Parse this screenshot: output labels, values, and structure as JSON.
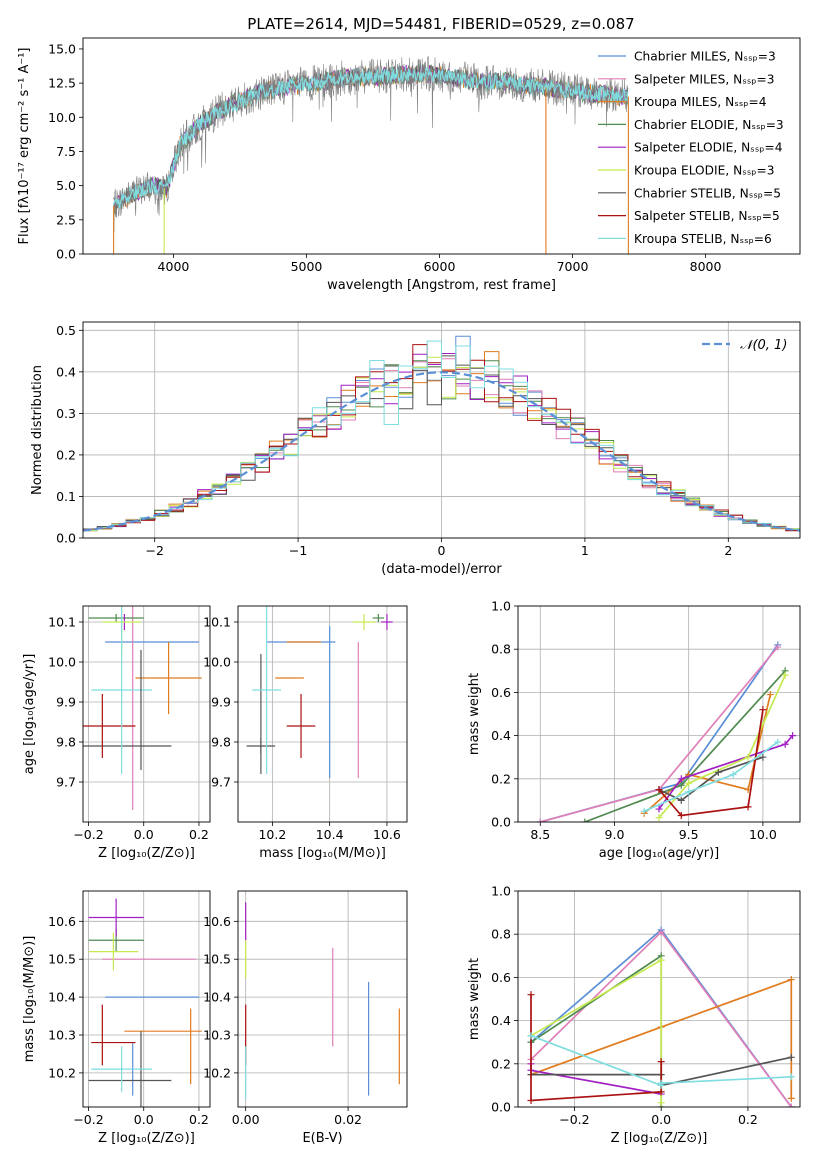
{
  "figure": {
    "title": "PLATE=2614, MJD=54481, FIBERID=0529, z=0.087"
  },
  "colors": {
    "chab_miles": "#5a8fd8",
    "salp_miles": "#e07fb8",
    "krou_miles": "#e07b1e",
    "chab_elodie": "#4f8a4f",
    "salp_elodie": "#a11fc3",
    "krou_elodie": "#c6e94f",
    "chab_stelib": "#555555",
    "salp_stelib": "#aa1111",
    "krou_stelib": "#7fdde0",
    "spectrum_data": "#7f7f7f",
    "gaussian": "#5b8fd6"
  },
  "chart_data": [
    {
      "id": "spectrum",
      "type": "line",
      "title": "PLATE=2614, MJD=54481, FIBERID=0529, z=0.087",
      "xlabel": "wavelength [Angstrom, rest frame]",
      "ylabel": "Flux [fλ10⁻¹⁷ erg cm⁻² s⁻¹ A⁻¹]",
      "xlim": [
        3320,
        8710
      ],
      "ylim": [
        0,
        15.8
      ],
      "xticks": [
        4000,
        5000,
        6000,
        7000,
        8000
      ],
      "yticks": [
        0.0,
        2.5,
        5.0,
        7.5,
        10.0,
        12.5,
        15.0
      ],
      "grid": false,
      "legend_position": "top-right",
      "legend": [
        {
          "label": "Chabrier MILES, Nₛₛₚ=3",
          "color_key": "chab_miles"
        },
        {
          "label": "Salpeter MILES, Nₛₛₚ=3",
          "color_key": "salp_miles"
        },
        {
          "label": "Kroupa MILES, Nₛₛₚ=4",
          "color_key": "krou_miles"
        },
        {
          "label": "Chabrier ELODIE, Nₛₛₚ=3",
          "color_key": "chab_elodie"
        },
        {
          "label": "Salpeter ELODIE, Nₛₛₚ=4",
          "color_key": "salp_elodie"
        },
        {
          "label": "Kroupa ELODIE, Nₛₛₚ=3",
          "color_key": "krou_elodie"
        },
        {
          "label": "Chabrier STELIB, Nₛₛₚ=5",
          "color_key": "chab_stelib"
        },
        {
          "label": "Salpeter STELIB, Nₛₛₚ=5",
          "color_key": "salp_stelib"
        },
        {
          "label": "Kroupa STELIB, Nₛₛₚ=6",
          "color_key": "krou_stelib"
        }
      ],
      "continuum_x": [
        3550,
        3700,
        3850,
        3950,
        4050,
        4200,
        4350,
        4500,
        4700,
        4900,
        5100,
        5300,
        5500,
        5700,
        5900,
        6100,
        6300,
        6500,
        6700,
        6900,
        7100,
        7300,
        7420
      ],
      "continuum_y": [
        3.5,
        4.5,
        5.0,
        4.8,
        8.0,
        9.5,
        10.5,
        11.2,
        12.0,
        12.3,
        12.6,
        12.9,
        13.0,
        13.1,
        13.2,
        12.9,
        12.6,
        12.6,
        12.3,
        12.1,
        11.8,
        11.6,
        11.5
      ],
      "spikes": [
        {
          "x": 3550,
          "color_key": "krou_miles"
        },
        {
          "x": 3930,
          "color_key": "krou_elodie"
        },
        {
          "x": 6800,
          "color_key": "krou_miles"
        },
        {
          "x": 7420,
          "color_key": "krou_miles"
        }
      ]
    },
    {
      "id": "residuals",
      "type": "line",
      "xlabel": "(data-model)/error",
      "ylabel": "Normed distribution",
      "xlim": [
        -2.5,
        2.5
      ],
      "ylim": [
        0,
        0.52
      ],
      "xticks": [
        -2,
        -1,
        0,
        1,
        2
      ],
      "yticks": [
        0.0,
        0.1,
        0.2,
        0.3,
        0.4,
        0.5
      ],
      "grid": true,
      "legend_position": "top-right",
      "legend": [
        {
          "label": "𝒩(0, 1)",
          "color_key": "gaussian"
        }
      ],
      "bin_width": 0.1,
      "series_note": "step histograms, one per model, plus dashed standard normal curve"
    },
    {
      "id": "age_vs_z",
      "type": "scatter",
      "xlabel": "Z [log₁₀(Z/Z⊙)]",
      "ylabel": "age  [log₁₀(age/yr)]",
      "xlim": [
        -0.22,
        0.24
      ],
      "ylim": [
        9.6,
        10.14
      ],
      "xticks": [
        -0.2,
        0.0,
        0.2
      ],
      "yticks": [
        9.7,
        9.8,
        9.9,
        10.0,
        10.1
      ],
      "grid": true,
      "points": [
        {
          "model": "chab_miles",
          "x": 0.03,
          "y": 10.05,
          "xerr": 0.17,
          "yerr": 0.0
        },
        {
          "model": "salp_miles",
          "x": -0.04,
          "y": 9.9,
          "xerr": 0.0,
          "yerr": 0.27
        },
        {
          "model": "krou_miles",
          "x": 0.09,
          "y": 9.96,
          "xerr": 0.12,
          "yerr": 0.09
        },
        {
          "model": "chab_elodie",
          "x": -0.1,
          "y": 10.11,
          "xerr": 0.1,
          "yerr": 0.01
        },
        {
          "model": "salp_elodie",
          "x": -0.07,
          "y": 10.1,
          "xerr": 0.0,
          "yerr": 0.02
        },
        {
          "model": "krou_elodie",
          "x": -0.08,
          "y": 10.1,
          "xerr": 0.07,
          "yerr": 0.08
        },
        {
          "model": "chab_stelib",
          "x": -0.07,
          "y": 9.79,
          "xerr": 0.17,
          "yerr": 0.0
        },
        {
          "model": "salp_stelib",
          "x": -0.15,
          "y": 9.84,
          "xerr": 0.12,
          "yerr": 0.08
        },
        {
          "model": "krou_stelib",
          "x": -0.08,
          "y": 9.93,
          "xerr": 0.11,
          "yerr": 0.21
        },
        {
          "model": "chab_stelib",
          "x": -0.01,
          "y": 9.88,
          "xerr": 0.0,
          "yerr": 0.15
        }
      ]
    },
    {
      "id": "age_vs_mass",
      "type": "scatter",
      "xlabel": "mass [log₁₀(M/M⊙)]",
      "xlim": [
        10.08,
        10.67
      ],
      "ylim": [
        9.6,
        10.14
      ],
      "xticks": [
        10.2,
        10.4,
        10.6
      ],
      "yticks": [
        9.7,
        9.8,
        9.9,
        10.0,
        10.1
      ],
      "grid": true,
      "points": [
        {
          "model": "chab_miles",
          "x": 10.3,
          "y": 10.05,
          "xerr": 0.12,
          "yerr": 0.0
        },
        {
          "model": "chab_miles",
          "x": 10.4,
          "y": 9.9,
          "xerr": 0.0,
          "yerr": 0.19
        },
        {
          "model": "salp_miles",
          "x": 10.5,
          "y": 9.88,
          "xerr": 0.0,
          "yerr": 0.17
        },
        {
          "model": "krou_miles",
          "x": 10.31,
          "y": 10.05,
          "xerr": 0.06,
          "yerr": 0.0
        },
        {
          "model": "krou_miles",
          "x": 10.26,
          "y": 9.96,
          "xerr": 0.05,
          "yerr": 0.0
        },
        {
          "model": "chab_elodie",
          "x": 10.57,
          "y": 10.11,
          "xerr": 0.02,
          "yerr": 0.01
        },
        {
          "model": "salp_elodie",
          "x": 10.6,
          "y": 10.1,
          "xerr": 0.02,
          "yerr": 0.02
        },
        {
          "model": "krou_elodie",
          "x": 10.52,
          "y": 10.1,
          "xerr": 0.04,
          "yerr": 0.02
        },
        {
          "model": "chab_stelib",
          "x": 10.16,
          "y": 9.79,
          "xerr": 0.05,
          "yerr": 0.02
        },
        {
          "model": "chab_stelib",
          "x": 10.16,
          "y": 9.87,
          "xerr": 0.0,
          "yerr": 0.15
        },
        {
          "model": "salp_stelib",
          "x": 10.3,
          "y": 9.84,
          "xerr": 0.05,
          "yerr": 0.08
        },
        {
          "model": "krou_stelib",
          "x": 10.18,
          "y": 9.93,
          "xerr": 0.05,
          "yerr": 0.21
        }
      ]
    },
    {
      "id": "mass_weight_vs_age",
      "type": "line",
      "xlabel": "age  [log₁₀(age/yr)]",
      "ylabel": "mass weight",
      "xlim": [
        8.35,
        10.25
      ],
      "ylim": [
        0,
        1.0
      ],
      "xticks": [
        8.5,
        9.0,
        9.5,
        10.0
      ],
      "yticks": [
        0.0,
        0.2,
        0.4,
        0.6,
        0.8,
        1.0
      ],
      "grid": true,
      "series": [
        {
          "model": "chab_miles",
          "x": [
            8.5,
            9.45,
            10.1
          ],
          "y": [
            0.0,
            0.18,
            0.82
          ]
        },
        {
          "model": "salp_miles",
          "x": [
            8.5,
            9.3,
            10.1
          ],
          "y": [
            0.0,
            0.15,
            0.81
          ]
        },
        {
          "model": "krou_miles",
          "x": [
            9.2,
            9.5,
            9.9,
            10.05
          ],
          "y": [
            0.04,
            0.22,
            0.15,
            0.59
          ]
        },
        {
          "model": "chab_elodie",
          "x": [
            8.8,
            9.45,
            10.15
          ],
          "y": [
            0.0,
            0.17,
            0.7
          ]
        },
        {
          "model": "salp_elodie",
          "x": [
            9.3,
            9.45,
            10.15,
            10.2
          ],
          "y": [
            0.06,
            0.2,
            0.36,
            0.4
          ]
        },
        {
          "model": "krou_elodie",
          "x": [
            9.3,
            9.5,
            9.9,
            10.15
          ],
          "y": [
            0.02,
            0.18,
            0.3,
            0.68
          ]
        },
        {
          "model": "chab_stelib",
          "x": [
            9.3,
            9.45,
            9.7,
            10.0
          ],
          "y": [
            0.15,
            0.1,
            0.23,
            0.3
          ]
        },
        {
          "model": "salp_stelib",
          "x": [
            9.3,
            9.45,
            9.9,
            10.0
          ],
          "y": [
            0.15,
            0.03,
            0.07,
            0.52
          ]
        },
        {
          "model": "krou_stelib",
          "x": [
            9.2,
            9.5,
            9.8,
            10.1
          ],
          "y": [
            0.05,
            0.14,
            0.22,
            0.37
          ]
        }
      ]
    },
    {
      "id": "mass_vs_z",
      "type": "scatter",
      "xlabel": "Z [log₁₀(Z/Z⊙)]",
      "ylabel": "mass [log₁₀(M/M⊙)]",
      "xlim": [
        -0.22,
        0.24
      ],
      "ylim": [
        10.11,
        10.68
      ],
      "xticks": [
        -0.2,
        0.0,
        0.2
      ],
      "yticks": [
        10.2,
        10.3,
        10.4,
        10.5,
        10.6
      ],
      "grid": true,
      "points": [
        {
          "model": "chab_miles",
          "x": 0.03,
          "y": 10.4,
          "xerr": 0.17,
          "yerr": 0.0
        },
        {
          "model": "chab_miles",
          "x": -0.04,
          "y": 10.21,
          "xerr": 0.0,
          "yerr": 0.07
        },
        {
          "model": "salp_miles",
          "x": 0.02,
          "y": 10.5,
          "xerr": 0.17,
          "yerr": 0.0
        },
        {
          "model": "krou_miles",
          "x": 0.07,
          "y": 10.31,
          "xerr": 0.14,
          "yerr": 0.0
        },
        {
          "model": "krou_miles",
          "x": 0.17,
          "y": 10.27,
          "xerr": 0.0,
          "yerr": 0.1
        },
        {
          "model": "chab_elodie",
          "x": -0.1,
          "y": 10.55,
          "xerr": 0.1,
          "yerr": 0.03
        },
        {
          "model": "salp_elodie",
          "x": -0.1,
          "y": 10.61,
          "xerr": 0.1,
          "yerr": 0.05
        },
        {
          "model": "krou_elodie",
          "x": -0.11,
          "y": 10.52,
          "xerr": 0.09,
          "yerr": 0.05
        },
        {
          "model": "chab_stelib",
          "x": -0.05,
          "y": 10.18,
          "xerr": 0.15,
          "yerr": 0.0
        },
        {
          "model": "chab_stelib",
          "x": -0.01,
          "y": 10.21,
          "xerr": 0.0,
          "yerr": 0.1
        },
        {
          "model": "salp_stelib",
          "x": -0.11,
          "y": 10.28,
          "xerr": 0.08,
          "yerr": 0.0
        },
        {
          "model": "salp_stelib",
          "x": -0.15,
          "y": 10.3,
          "xerr": 0.0,
          "yerr": 0.08
        },
        {
          "model": "krou_stelib",
          "x": -0.08,
          "y": 10.21,
          "xerr": 0.11,
          "yerr": 0.06
        }
      ]
    },
    {
      "id": "mass_vs_ebv",
      "type": "scatter",
      "xlabel": "E(B-V)",
      "xlim": [
        -0.0015,
        0.0315
      ],
      "ylim": [
        10.11,
        10.68
      ],
      "xticks": [
        0.0,
        0.02
      ],
      "yticks": [
        10.2,
        10.3,
        10.4,
        10.5,
        10.6
      ],
      "grid": true,
      "points": [
        {
          "model": "salp_elodie",
          "x": 0.0,
          "y": 10.6,
          "xerr": 0.0,
          "yerr": 0.05
        },
        {
          "model": "krou_elodie",
          "x": 0.0,
          "y": 10.5,
          "xerr": 0.0,
          "yerr": 0.05
        },
        {
          "model": "salp_stelib",
          "x": 0.0,
          "y": 10.3,
          "xerr": 0.0,
          "yerr": 0.08
        },
        {
          "model": "krou_stelib",
          "x": 0.0,
          "y": 10.2,
          "xerr": 0.0,
          "yerr": 0.07
        },
        {
          "model": "salp_miles",
          "x": 0.017,
          "y": 10.4,
          "xerr": 0.0,
          "yerr": 0.13
        },
        {
          "model": "chab_miles",
          "x": 0.024,
          "y": 10.29,
          "xerr": 0.0,
          "yerr": 0.15
        },
        {
          "model": "krou_miles",
          "x": 0.03,
          "y": 10.27,
          "xerr": 0.0,
          "yerr": 0.1
        }
      ]
    },
    {
      "id": "mass_weight_vs_z",
      "type": "line",
      "xlabel": "Z [log₁₀(Z/Z⊙)]",
      "ylabel": "mass weight",
      "xlim": [
        -0.33,
        0.32
      ],
      "ylim": [
        0,
        1.0
      ],
      "xticks": [
        -0.2,
        0.0,
        0.2
      ],
      "yticks": [
        0.0,
        0.2,
        0.4,
        0.6,
        0.8,
        1.0
      ],
      "grid": true,
      "series": [
        {
          "model": "chab_miles",
          "x": [
            -0.3,
            0.0,
            0.3
          ],
          "y": [
            0.3,
            0.82,
            0.0
          ]
        },
        {
          "model": "salp_miles",
          "x": [
            -0.3,
            0.0,
            0.3
          ],
          "y": [
            0.22,
            0.81,
            0.0
          ]
        },
        {
          "model": "krou_miles",
          "x": [
            -0.3,
            0.0,
            0.3,
            0.3
          ],
          "y": [
            0.15,
            0.37,
            0.59,
            0.04
          ]
        },
        {
          "model": "chab_elodie",
          "x": [
            -0.3,
            0.0,
            0.0
          ],
          "y": [
            0.3,
            0.7,
            0.0
          ]
        },
        {
          "model": "salp_elodie",
          "x": [
            -0.3,
            -0.3,
            0.0
          ],
          "y": [
            0.2,
            0.17,
            0.06
          ]
        },
        {
          "model": "krou_elodie",
          "x": [
            -0.3,
            0.0,
            0.0
          ],
          "y": [
            0.33,
            0.68,
            0.02
          ]
        },
        {
          "model": "chab_stelib",
          "x": [
            -0.3,
            0.0,
            0.0,
            0.3
          ],
          "y": [
            0.15,
            0.15,
            0.1,
            0.23
          ]
        },
        {
          "model": "salp_stelib",
          "x": [
            -0.3,
            -0.3,
            0.0,
            0.0
          ],
          "y": [
            0.52,
            0.03,
            0.07,
            0.21
          ]
        },
        {
          "model": "krou_stelib",
          "x": [
            -0.3,
            0.0,
            0.0,
            0.3
          ],
          "y": [
            0.33,
            0.1,
            0.11,
            0.14
          ]
        }
      ]
    }
  ]
}
